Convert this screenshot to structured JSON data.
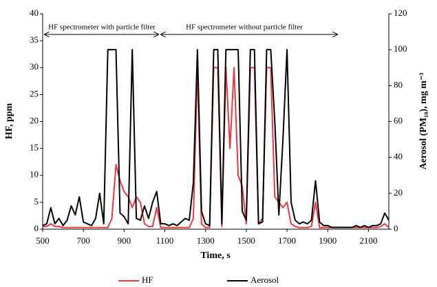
{
  "chart_data": {
    "type": "line",
    "xlabel": "Time, s",
    "ylabel": "HF, ppm",
    "y2label": "Aerosol (PM₁₀), mg m⁻³",
    "annotations": [
      "HF spectrometer with particle filter",
      "HF spectrometer without particle filter"
    ],
    "x": [
      500,
      520,
      540,
      560,
      580,
      600,
      620,
      640,
      660,
      680,
      700,
      720,
      740,
      760,
      780,
      800,
      820,
      840,
      860,
      880,
      900,
      920,
      940,
      960,
      980,
      1000,
      1020,
      1040,
      1060,
      1080,
      1100,
      1120,
      1140,
      1160,
      1180,
      1200,
      1220,
      1240,
      1260,
      1280,
      1300,
      1320,
      1340,
      1360,
      1380,
      1400,
      1420,
      1440,
      1460,
      1480,
      1500,
      1520,
      1540,
      1560,
      1580,
      1600,
      1620,
      1640,
      1660,
      1680,
      1700,
      1720,
      1740,
      1760,
      1780,
      1800,
      1820,
      1840,
      1860,
      1880,
      1900,
      1920,
      1940,
      1960,
      1980,
      2000,
      2020,
      2040,
      2060,
      2080,
      2100,
      2120,
      2140,
      2160,
      2180,
      2200
    ],
    "series": [
      {
        "name": "HF",
        "color": "#e8383d",
        "axis": "y",
        "values": [
          0.5,
          0.5,
          1,
          0.5,
          0.5,
          0.3,
          0.3,
          0.3,
          0.3,
          0.3,
          0.3,
          0.3,
          0.3,
          0.3,
          0.3,
          0.3,
          0.3,
          2,
          12,
          9,
          7,
          6,
          4,
          6,
          5,
          1,
          0.5,
          0.5,
          4,
          0.3,
          0.3,
          0.3,
          0.3,
          0.3,
          0.3,
          0.3,
          0.3,
          2,
          30,
          1,
          0.3,
          0.3,
          30,
          30,
          0.5,
          30,
          15,
          30,
          10,
          8,
          1,
          30,
          30,
          1,
          2,
          30,
          30,
          6,
          5,
          4,
          5,
          1,
          0.5,
          0.3,
          0.3,
          0.3,
          0.5,
          5,
          0.3,
          0.3,
          0.3,
          0.3,
          0.3,
          0.3,
          0.3,
          0.3,
          0.3,
          0.3,
          0.3,
          0.3,
          0.3,
          0.3,
          0.3,
          0.5,
          1,
          0.3
        ]
      },
      {
        "name": "Aerosol",
        "color": "#000000",
        "axis": "y2",
        "values": [
          2,
          3,
          12,
          3,
          6,
          2,
          5,
          13,
          8,
          18,
          4,
          3,
          2,
          6,
          20,
          3,
          100,
          100,
          100,
          9,
          7,
          3,
          100,
          6,
          5,
          13,
          6,
          15,
          21,
          3,
          3,
          2,
          3,
          2,
          4,
          6,
          5,
          26,
          100,
          10,
          3,
          2,
          100,
          100,
          3,
          100,
          100,
          100,
          100,
          10,
          5,
          100,
          100,
          3,
          4,
          100,
          100,
          60,
          8,
          50,
          100,
          15,
          5,
          3,
          4,
          3,
          5,
          27,
          4,
          2,
          2,
          1,
          1,
          1,
          1,
          1,
          1,
          2,
          1,
          2,
          1,
          2,
          2,
          3,
          9,
          5
        ]
      }
    ],
    "xlim": [
      500,
      2200
    ],
    "xticks": [
      500,
      700,
      900,
      1100,
      1300,
      1500,
      1700,
      1900,
      2100
    ],
    "ylim": [
      0,
      40
    ],
    "yticks": [
      0,
      5,
      10,
      15,
      20,
      25,
      30,
      35,
      40
    ],
    "y2lim": [
      0,
      120
    ],
    "y2ticks": [
      0,
      20,
      40,
      60,
      80,
      100,
      120
    ],
    "grid": false,
    "legend": "bottom"
  }
}
